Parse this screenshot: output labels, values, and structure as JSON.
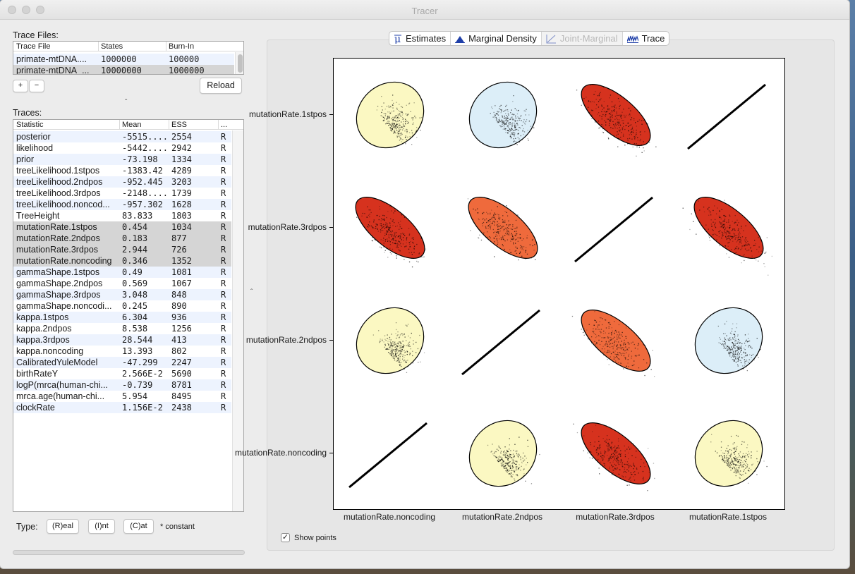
{
  "window": {
    "title": "Tracer"
  },
  "trace_files": {
    "label": "Trace Files:",
    "headers": [
      "Trace File",
      "States",
      "Burn-In"
    ],
    "rows": [
      [
        "primate-mtDNA....",
        "1000000",
        "100000"
      ],
      [
        "primate-mtDNA_...",
        "10000000",
        "1000000"
      ]
    ],
    "add_label": "+",
    "remove_label": "−",
    "reload_label": "Reload"
  },
  "traces": {
    "label": "Traces:",
    "headers": [
      "Statistic",
      "Mean",
      "ESS",
      "..."
    ],
    "rows": [
      [
        "posterior",
        "-5515....",
        "2554",
        "R"
      ],
      [
        "likelihood",
        "-5442....",
        "2942",
        "R"
      ],
      [
        "prior",
        "-73.198",
        "1334",
        "R"
      ],
      [
        "treeLikelihood.1stpos",
        "-1383.42",
        "4289",
        "R"
      ],
      [
        "treeLikelihood.2ndpos",
        "-952.445",
        "3203",
        "R"
      ],
      [
        "treeLikelihood.3rdpos",
        "-2148....",
        "1739",
        "R"
      ],
      [
        "treeLikelihood.noncod...",
        "-957.302",
        "1628",
        "R"
      ],
      [
        "TreeHeight",
        "83.833",
        "1803",
        "R"
      ],
      [
        "mutationRate.1stpos",
        "0.454",
        "1034",
        "R"
      ],
      [
        "mutationRate.2ndpos",
        "0.183",
        "877",
        "R"
      ],
      [
        "mutationRate.3rdpos",
        "2.944",
        "726",
        "R"
      ],
      [
        "mutationRate.noncoding",
        "0.346",
        "1352",
        "R"
      ],
      [
        "gammaShape.1stpos",
        "0.49",
        "1081",
        "R"
      ],
      [
        "gammaShape.2ndpos",
        "0.569",
        "1067",
        "R"
      ],
      [
        "gammaShape.3rdpos",
        "3.048",
        "848",
        "R"
      ],
      [
        "gammaShape.noncodi...",
        "0.245",
        "890",
        "R"
      ],
      [
        "kappa.1stpos",
        "6.304",
        "936",
        "R"
      ],
      [
        "kappa.2ndpos",
        "8.538",
        "1256",
        "R"
      ],
      [
        "kappa.3rdpos",
        "28.544",
        "413",
        "R"
      ],
      [
        "kappa.noncoding",
        "13.393",
        "802",
        "R"
      ],
      [
        "CalibratedYuleModel",
        "-47.299",
        "2247",
        "R"
      ],
      [
        "birthRateY",
        "2.566E-2",
        "5690",
        "R"
      ],
      [
        "logP(mrca(human-chi...",
        "-0.739",
        "8781",
        "R"
      ],
      [
        "mrca.age(human-chi...",
        "5.954",
        "8495",
        "R"
      ],
      [
        "clockRate",
        "1.156E-2",
        "2438",
        "R"
      ]
    ],
    "selected_rows": [
      8,
      9,
      10,
      11
    ]
  },
  "type_bar": {
    "label": "Type:",
    "real_label": "(R)eal",
    "int_label": "(I)nt",
    "cat_label": "(C)at",
    "constant_note": "* constant"
  },
  "tabs": [
    {
      "label": "Estimates",
      "icon": "mu-icon"
    },
    {
      "label": "Marginal Density",
      "icon": "density-icon"
    },
    {
      "label": "Joint-Marginal",
      "icon": "joint-marginal-icon"
    },
    {
      "label": "Trace",
      "icon": "trace-icon"
    }
  ],
  "colors": {
    "selected_row": "#d5d5d5",
    "stripe_row": "#edf3fe",
    "yellow_fill": "#fbf8c2",
    "blue_fill": "#dceef8",
    "red_fill": "#d6321e",
    "orange_fill": "#ef6a3c"
  },
  "plot": {
    "row_labels": [
      "mutationRate.1stpos",
      "mutationRate.3rdpos",
      "mutationRate.2ndpos",
      "mutationRate.noncoding"
    ],
    "col_labels": [
      "mutationRate.noncoding",
      "mutationRate.2ndpos",
      "mutationRate.3rdpos",
      "mutationRate.1stpos"
    ],
    "show_points_label": "Show points",
    "show_points_checked": true
  },
  "chart_data": {
    "type": "scatter",
    "title": "",
    "note": "Joint-marginal scatter matrix of four mutation rates; each off-diagonal cell shows sampled points with a correlation ellipse; diagonal cells are identity lines",
    "rows": [
      "mutationRate.1stpos",
      "mutationRate.3rdpos",
      "mutationRate.2ndpos",
      "mutationRate.noncoding"
    ],
    "columns": [
      "mutationRate.noncoding",
      "mutationRate.2ndpos",
      "mutationRate.3rdpos",
      "mutationRate.1stpos"
    ],
    "cells": [
      [
        "yellow",
        "blue",
        "red",
        "diagonal"
      ],
      [
        "red",
        "orange",
        "diagonal",
        "red"
      ],
      [
        "yellow",
        "diagonal",
        "orange",
        "blue"
      ],
      [
        "diagonal",
        "yellow",
        "red",
        "yellow"
      ]
    ]
  }
}
